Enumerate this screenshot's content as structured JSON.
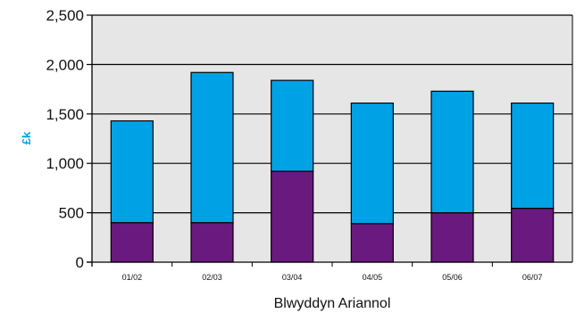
{
  "chart_data": {
    "type": "bar",
    "stacked": true,
    "categories": [
      "01/02",
      "02/03",
      "03/04",
      "04/05",
      "05/06",
      "06/07"
    ],
    "series": [
      {
        "color": "#6a1a7e",
        "values": [
          400,
          400,
          920,
          390,
          500,
          545
        ]
      },
      {
        "color": "#00a2e6",
        "values": [
          1030,
          1520,
          920,
          1220,
          1230,
          1065
        ]
      }
    ],
    "xlabel": "Blwyddyn Ariannol",
    "ylabel": "£k",
    "ylabel_color": "#00a2e6",
    "ylim": [
      0,
      2500
    ],
    "yticks": [
      0,
      500,
      1000,
      1500,
      2000,
      2500
    ],
    "ytick_labels": [
      "0",
      "500",
      "1,000",
      "1,500",
      "2,000",
      "2,500"
    ],
    "grid": true,
    "plot_background": "#e6e6e6"
  }
}
